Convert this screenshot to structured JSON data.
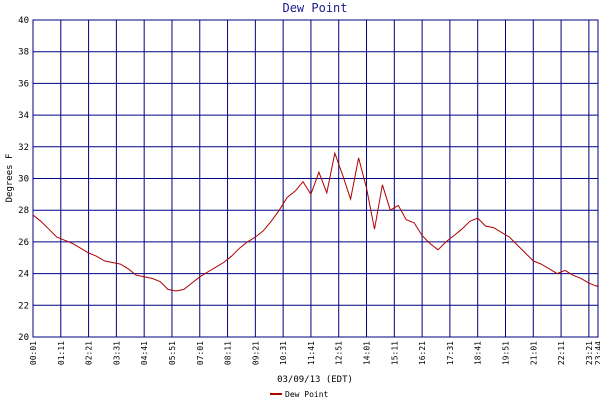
{
  "chart_data": {
    "type": "line",
    "title": "Dew Point",
    "x_label": "03/09/13 (EDT)",
    "y_label": "Degrees F",
    "x": [
      "00:01",
      "00:21",
      "00:41",
      "01:01",
      "01:21",
      "01:41",
      "02:01",
      "02:21",
      "02:41",
      "03:01",
      "03:21",
      "03:41",
      "04:01",
      "04:21",
      "04:41",
      "05:01",
      "05:21",
      "05:41",
      "06:01",
      "06:21",
      "06:41",
      "07:01",
      "07:21",
      "07:41",
      "08:01",
      "08:21",
      "08:41",
      "09:01",
      "09:21",
      "09:41",
      "10:01",
      "10:21",
      "10:41",
      "11:01",
      "11:21",
      "11:41",
      "12:01",
      "12:21",
      "12:41",
      "13:01",
      "13:21",
      "13:41",
      "14:01",
      "14:21",
      "14:41",
      "15:01",
      "15:21",
      "15:41",
      "16:01",
      "16:21",
      "16:41",
      "17:01",
      "17:21",
      "17:41",
      "18:01",
      "18:21",
      "18:41",
      "19:01",
      "19:21",
      "19:41",
      "20:01",
      "20:21",
      "20:41",
      "21:01",
      "21:21",
      "21:41",
      "22:01",
      "22:21",
      "22:41",
      "23:01",
      "23:21",
      "23:41",
      "23:44"
    ],
    "series": [
      {
        "name": "Dew Point",
        "color": "#b00000",
        "values": [
          27.7,
          27.3,
          26.8,
          26.3,
          26.1,
          25.9,
          25.6,
          25.3,
          25.1,
          24.8,
          24.7,
          24.6,
          24.3,
          23.9,
          23.8,
          23.7,
          23.5,
          23.0,
          22.9,
          23.0,
          23.4,
          23.8,
          24.1,
          24.4,
          24.7,
          25.1,
          25.6,
          26.0,
          26.3,
          26.7,
          27.3,
          28.0,
          28.8,
          29.2,
          29.8,
          29.0,
          30.4,
          29.1,
          31.6,
          30.2,
          28.7,
          31.3,
          29.4,
          26.8,
          29.6,
          28.0,
          28.3,
          27.4,
          27.2,
          26.4,
          25.9,
          25.5,
          26.0,
          26.4,
          26.8,
          27.3,
          27.5,
          27.0,
          26.9,
          26.6,
          26.3,
          25.8,
          25.3,
          24.8,
          24.6,
          24.3,
          24.0,
          24.2,
          23.9,
          23.7,
          23.4,
          23.2,
          23.3
        ]
      }
    ],
    "xlim": [
      "00:01",
      "23:44"
    ],
    "xticks": [
      "00:01",
      "01:11",
      "02:21",
      "03:31",
      "04:41",
      "05:51",
      "07:01",
      "08:11",
      "09:21",
      "10:31",
      "11:41",
      "12:51",
      "14:01",
      "15:11",
      "16:21",
      "17:31",
      "18:41",
      "19:51",
      "21:01",
      "22:11",
      "23:21",
      "23:44"
    ],
    "ylim": [
      20,
      40
    ],
    "yticks": [
      20,
      22,
      24,
      26,
      28,
      30,
      32,
      34,
      36,
      38,
      40
    ],
    "grid": true,
    "legend": "bottom"
  }
}
